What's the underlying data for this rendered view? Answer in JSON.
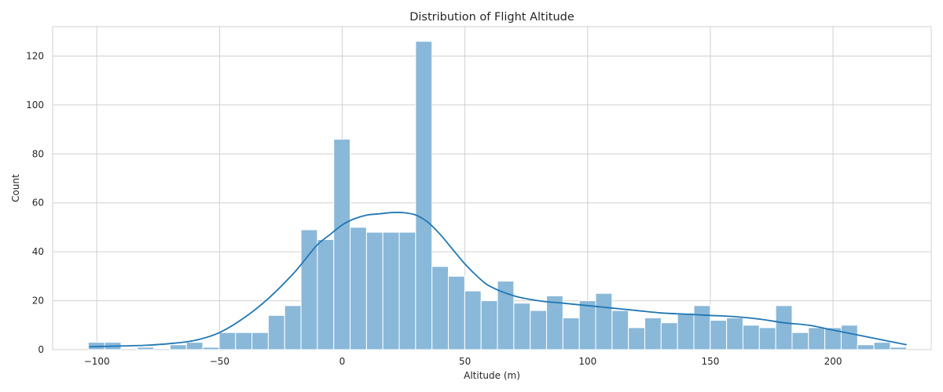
{
  "chart_data": {
    "type": "bar",
    "title": "Distribution of Flight Altitude",
    "xlabel": "Altitude (m)",
    "ylabel": "Count",
    "xlim": [
      -118,
      240
    ],
    "ylim": [
      0,
      132
    ],
    "grid": true,
    "xticks": [
      -100,
      -50,
      0,
      50,
      100,
      150,
      200
    ],
    "xtick_labels": [
      "−100",
      "−50",
      "0",
      "50",
      "100",
      "150",
      "200"
    ],
    "yticks": [
      0,
      20,
      40,
      60,
      80,
      100,
      120
    ],
    "bin_start": -103.5,
    "bin_width": 6.67,
    "counts": [
      3,
      3,
      0,
      1,
      0,
      2,
      3,
      1,
      7,
      7,
      7,
      14,
      18,
      49,
      45,
      86,
      50,
      48,
      48,
      48,
      126,
      34,
      30,
      24,
      20,
      28,
      19,
      16,
      22,
      13,
      20,
      23,
      16,
      9,
      13,
      11,
      15,
      18,
      12,
      13,
      10,
      9,
      18,
      7,
      9,
      9,
      10,
      2,
      3,
      1
    ],
    "kde": {
      "x": [
        -103,
        -90,
        -80,
        -70,
        -60,
        -50,
        -40,
        -30,
        -20,
        -15,
        -10,
        -5,
        0,
        5,
        10,
        15,
        20,
        25,
        30,
        35,
        40,
        45,
        50,
        55,
        60,
        70,
        80,
        90,
        100,
        110,
        120,
        130,
        140,
        150,
        160,
        170,
        180,
        190,
        200,
        210,
        220,
        230
      ],
      "y": [
        1.2,
        1.5,
        1.8,
        2.5,
        3.8,
        7,
        13,
        21,
        31,
        37,
        43,
        47,
        51,
        53.5,
        55,
        55.5,
        56,
        56,
        55,
        52,
        47,
        41,
        35,
        30,
        26,
        22,
        20,
        19,
        18,
        17,
        16,
        15,
        14.5,
        14,
        13.5,
        12.5,
        11,
        10,
        8,
        6,
        4,
        2
      ]
    },
    "colors": {
      "bar_fill": "#8ab8d9",
      "bar_edge": "#ffffff",
      "kde_line": "#2077b4",
      "grid": "#d0d0d0"
    }
  }
}
